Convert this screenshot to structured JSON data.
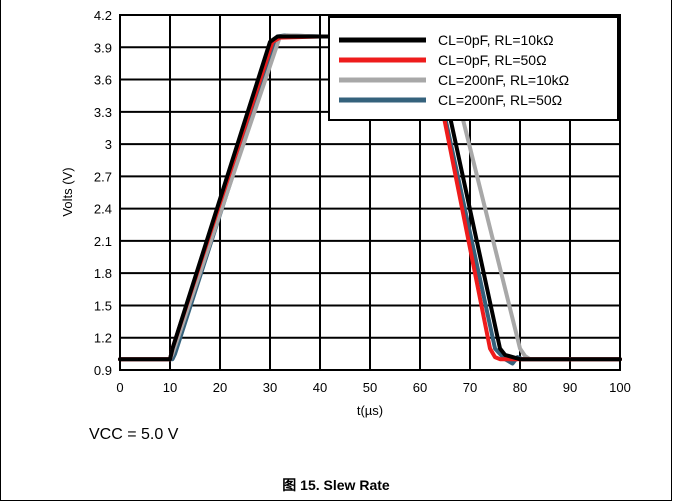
{
  "chart_data": {
    "type": "line",
    "title": "",
    "xlabel": "t(µs)",
    "ylabel": "Volts (V)",
    "xlim": [
      0,
      100
    ],
    "ylim": [
      0.9,
      4.2
    ],
    "xticks": [
      0,
      10,
      20,
      30,
      40,
      50,
      60,
      70,
      80,
      90,
      100
    ],
    "yticks": [
      0.9,
      1.2,
      1.5,
      1.8,
      2.1,
      2.4,
      2.7,
      3,
      3.3,
      3.6,
      3.9,
      4.2
    ],
    "grid": true,
    "legend_position": "top-right",
    "series": [
      {
        "name": "CL=0pF, RL=10kΩ",
        "color": "#000000",
        "x": [
          0,
          10,
          10.5,
          30,
          31.5,
          40,
          60,
          63,
          76,
          77,
          80,
          100
        ],
        "y": [
          1.0,
          1.0,
          1.1,
          3.95,
          4.0,
          4.0,
          4.0,
          3.9,
          1.1,
          1.04,
          1.0,
          1.0
        ]
      },
      {
        "name": "CL=0pF, RL=50Ω",
        "color": "#ee1c1c",
        "x": [
          0,
          10,
          10.5,
          30.5,
          32,
          40,
          60,
          62,
          74,
          75,
          76,
          80,
          100
        ],
        "y": [
          1.0,
          1.0,
          1.1,
          3.95,
          3.99,
          4.0,
          4.0,
          3.9,
          1.1,
          1.02,
          1.0,
          1.0,
          1.0
        ]
      },
      {
        "name": "CL=200nF, RL=10kΩ",
        "color": "#a8a8a8",
        "x": [
          0,
          10,
          10.5,
          32,
          33.5,
          40,
          62,
          65,
          80,
          81,
          82,
          100
        ],
        "y": [
          1.0,
          1.0,
          1.05,
          4.0,
          4.01,
          4.0,
          4.0,
          3.9,
          1.1,
          1.03,
          1.0,
          1.0
        ]
      },
      {
        "name": "CL=200nF, RL=50Ω",
        "color": "#35627c",
        "x": [
          0,
          10.5,
          11,
          31.5,
          33,
          40,
          60,
          62,
          75,
          77,
          78.5,
          79.5,
          80.5,
          100
        ],
        "y": [
          1.0,
          1.0,
          1.05,
          4.0,
          4.01,
          4.0,
          4.0,
          3.9,
          1.1,
          1.0,
          0.96,
          1.02,
          1.0,
          1.0
        ]
      }
    ]
  },
  "note": "VCC = 5.0 V",
  "caption": "图 15. Slew Rate"
}
